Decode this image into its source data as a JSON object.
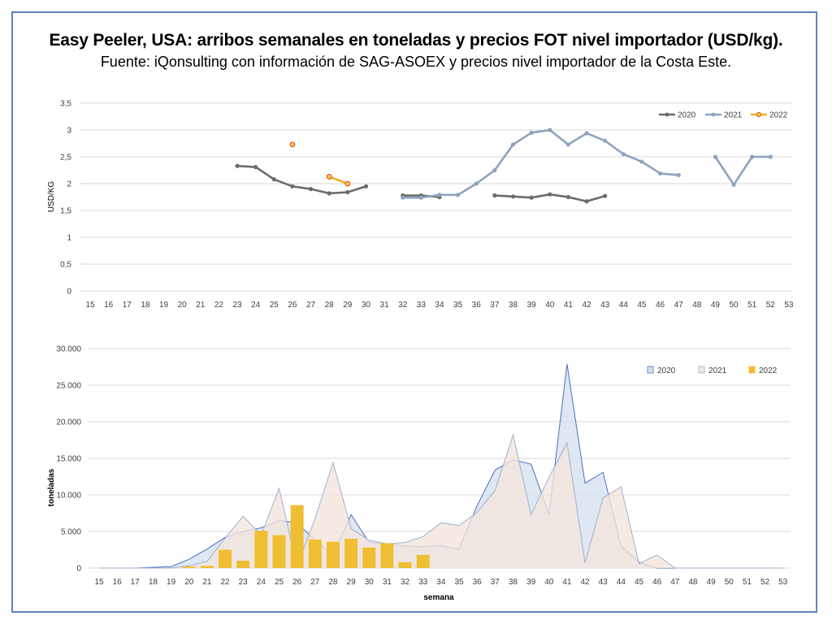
{
  "title": "Easy Peeler, USA: arribos semanales en toneladas y precios FOT nivel importador (USD/kg).",
  "subtitle": "Fuente: iQonsulting con información de SAG-ASOEX y precios nivel importador de la Costa Este.",
  "chart_data": [
    {
      "type": "line",
      "ylabel": "USD/KG",
      "xlabel": "",
      "ylim": [
        0,
        3.5
      ],
      "yticks": [
        "0",
        "0,5",
        "1",
        "1,5",
        "2",
        "2,5",
        "3",
        "3,5"
      ],
      "ytick_values": [
        0,
        0.5,
        1,
        1.5,
        2,
        2.5,
        3,
        3.5
      ],
      "categories": [
        "15",
        "16",
        "17",
        "18",
        "19",
        "20",
        "21",
        "22",
        "23",
        "24",
        "25",
        "26",
        "27",
        "28",
        "29",
        "30",
        "31",
        "32",
        "33",
        "34",
        "35",
        "36",
        "37",
        "38",
        "39",
        "40",
        "41",
        "42",
        "43",
        "44",
        "45",
        "46",
        "47",
        "48",
        "49",
        "50",
        "51",
        "52",
        "53"
      ],
      "grid": true,
      "legend_position": "top-right",
      "series": [
        {
          "name": "2020",
          "color": "#6b6b6b",
          "values": [
            null,
            null,
            null,
            null,
            null,
            null,
            null,
            null,
            2.33,
            2.31,
            2.08,
            1.95,
            1.9,
            1.82,
            1.84,
            1.95,
            null,
            1.78,
            1.78,
            1.75,
            null,
            null,
            1.78,
            1.76,
            1.74,
            1.8,
            1.75,
            1.67,
            1.77,
            null,
            null,
            null,
            null,
            null,
            null,
            null,
            null,
            null,
            null
          ]
        },
        {
          "name": "2021",
          "color": "#8ea3bd",
          "values": [
            null,
            null,
            null,
            null,
            null,
            null,
            null,
            null,
            null,
            null,
            null,
            null,
            null,
            null,
            null,
            null,
            null,
            1.74,
            1.74,
            1.79,
            1.79,
            2.0,
            2.25,
            2.73,
            2.95,
            3.0,
            2.73,
            2.94,
            2.8,
            2.55,
            2.41,
            2.19,
            2.16,
            null,
            2.5,
            1.98,
            2.5,
            2.5,
            null
          ]
        },
        {
          "name": "2022",
          "color": "#f0b323",
          "values": [
            null,
            null,
            null,
            null,
            null,
            null,
            null,
            null,
            null,
            null,
            null,
            2.73,
            null,
            2.13,
            2.0,
            null,
            null,
            null,
            null,
            null,
            null,
            null,
            null,
            null,
            null,
            null,
            null,
            null,
            null,
            null,
            null,
            null,
            null,
            null,
            null,
            null,
            null,
            null,
            null
          ]
        }
      ]
    },
    {
      "type": "area",
      "ylabel": "toneladas",
      "xlabel": "semana",
      "ylim": [
        0,
        30000
      ],
      "yticks": [
        "0",
        "5.000",
        "10.000",
        "15.000",
        "20.000",
        "25.000",
        "30.000"
      ],
      "ytick_values": [
        0,
        5000,
        10000,
        15000,
        20000,
        25000,
        30000
      ],
      "categories": [
        "15",
        "16",
        "17",
        "18",
        "19",
        "20",
        "21",
        "22",
        "23",
        "24",
        "25",
        "26",
        "27",
        "28",
        "29",
        "30",
        "31",
        "32",
        "33",
        "34",
        "35",
        "36",
        "37",
        "38",
        "39",
        "40",
        "41",
        "42",
        "43",
        "44",
        "45",
        "46",
        "47",
        "48",
        "49",
        "50",
        "51",
        "52",
        "53"
      ],
      "grid": true,
      "legend_position": "top-right",
      "series": [
        {
          "name": "2020",
          "kind": "area",
          "fill": "#d6e0f0",
          "stroke": "#4a72c0",
          "values": [
            0,
            0,
            0,
            100,
            200,
            1200,
            2600,
            4200,
            5000,
            5500,
            6500,
            6200,
            3800,
            1800,
            7300,
            3500,
            3300,
            3000,
            2900,
            3100,
            2600,
            8500,
            13400,
            14800,
            14200,
            7400,
            27900,
            11600,
            13100,
            3000,
            800,
            0,
            0,
            0,
            0,
            0,
            0,
            0,
            0
          ]
        },
        {
          "name": "2021",
          "kind": "area",
          "fill": "#f4e6dc",
          "stroke": "#9fb1cc",
          "values": [
            0,
            0,
            0,
            0,
            0,
            300,
            900,
            4100,
            7100,
            4500,
            10900,
            200,
            6800,
            14400,
            5400,
            3800,
            3300,
            3500,
            4300,
            6200,
            5800,
            7600,
            10600,
            18200,
            7300,
            12400,
            17100,
            700,
            9600,
            11100,
            600,
            1800,
            0,
            0,
            0,
            0,
            0,
            0,
            0
          ]
        },
        {
          "name": "2022",
          "kind": "bar",
          "fill": "#f0be32",
          "values": [
            0,
            0,
            0,
            0,
            0,
            200,
            300,
            2500,
            1000,
            5100,
            4500,
            8600,
            3900,
            3600,
            4000,
            2800,
            3400,
            800,
            1800,
            null,
            null,
            null,
            null,
            null,
            null,
            null,
            null,
            null,
            null,
            null,
            null,
            null,
            null,
            null,
            null,
            null,
            null,
            null,
            null
          ]
        }
      ]
    }
  ]
}
